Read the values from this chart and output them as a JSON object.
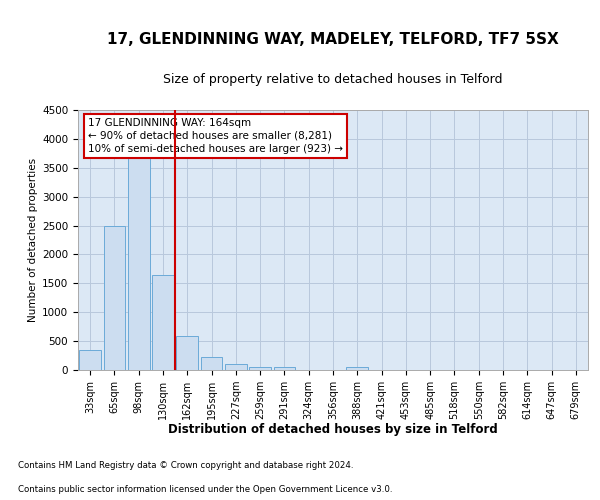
{
  "title1": "17, GLENDINNING WAY, MADELEY, TELFORD, TF7 5SX",
  "title2": "Size of property relative to detached houses in Telford",
  "xlabel": "Distribution of detached houses by size in Telford",
  "ylabel": "Number of detached properties",
  "footnote1": "Contains HM Land Registry data © Crown copyright and database right 2024.",
  "footnote2": "Contains public sector information licensed under the Open Government Licence v3.0.",
  "categories": [
    "33sqm",
    "65sqm",
    "98sqm",
    "130sqm",
    "162sqm",
    "195sqm",
    "227sqm",
    "259sqm",
    "291sqm",
    "324sqm",
    "356sqm",
    "388sqm",
    "421sqm",
    "453sqm",
    "485sqm",
    "518sqm",
    "550sqm",
    "582sqm",
    "614sqm",
    "647sqm",
    "679sqm"
  ],
  "values": [
    350,
    2500,
    3750,
    1650,
    580,
    220,
    100,
    55,
    55,
    0,
    0,
    50,
    0,
    0,
    0,
    0,
    0,
    0,
    0,
    0,
    0
  ],
  "bar_color": "#ccddf0",
  "bar_edge_color": "#6baad8",
  "vline_x": 3.5,
  "vline_color": "#cc0000",
  "ylim": [
    0,
    4500
  ],
  "yticks": [
    0,
    500,
    1000,
    1500,
    2000,
    2500,
    3000,
    3500,
    4000,
    4500
  ],
  "annotation_line1": "17 GLENDINNING WAY: 164sqm",
  "annotation_line2": "← 90% of detached houses are smaller (8,281)",
  "annotation_line3": "10% of semi-detached houses are larger (923) →",
  "annotation_box_color": "#ffffff",
  "annotation_box_edge": "#cc0000",
  "grid_color": "#b8c8dc",
  "plot_bg_color": "#dce8f5",
  "title_fontsize": 11,
  "subtitle_fontsize": 9
}
